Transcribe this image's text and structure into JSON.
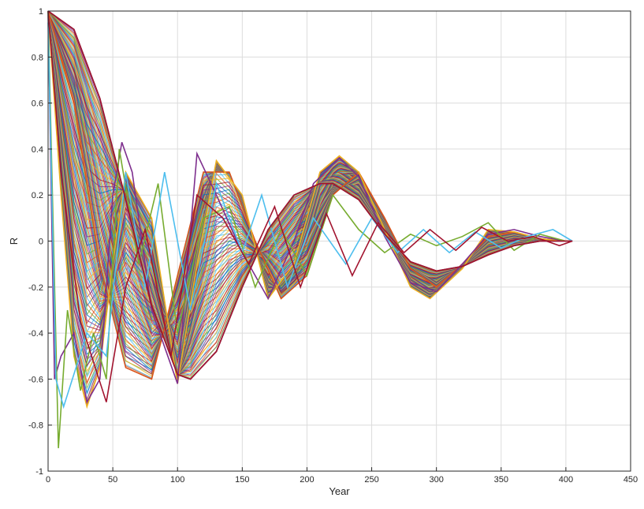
{
  "chart_data": {
    "type": "line",
    "title": "",
    "xlabel": "Year",
    "ylabel": "R",
    "xlim": [
      0,
      450
    ],
    "ylim": [
      -1,
      1
    ],
    "xticks": [
      0,
      50,
      100,
      150,
      200,
      250,
      300,
      350,
      400,
      450
    ],
    "xtick_labels": [
      "0",
      "50",
      "100",
      "150",
      "200",
      "250",
      "300",
      "350",
      "400",
      "450"
    ],
    "yticks": [
      -1,
      -0.8,
      -0.6,
      -0.4,
      -0.2,
      0,
      0.2,
      0.4,
      0.6,
      0.8,
      1
    ],
    "ytick_labels": [
      "-1",
      "-0.8",
      "-0.6",
      "-0.4",
      "-0.2",
      "0",
      "0.2",
      "0.4",
      "0.6",
      "0.8",
      "1"
    ],
    "grid": true,
    "legend": "none",
    "series_colors": [
      "#0072BD",
      "#D95319",
      "#EDB120",
      "#7E2F8E",
      "#77AC30",
      "#4DBEEE",
      "#A2142F"
    ],
    "series": [
      {
        "x": [
          0,
          20,
          40,
          60,
          80,
          100,
          110,
          130,
          150,
          170,
          190,
          210,
          220,
          240,
          260,
          280,
          300,
          320,
          340,
          360,
          380,
          400,
          405
        ],
        "values": [
          1.0,
          0.92,
          0.62,
          0.18,
          -0.28,
          -0.58,
          -0.6,
          -0.48,
          -0.2,
          0.05,
          0.2,
          0.25,
          0.25,
          0.18,
          0.03,
          -0.09,
          -0.13,
          -0.11,
          -0.06,
          -0.02,
          0.0,
          0.0,
          0.0
        ]
      },
      {
        "x": [
          0,
          20,
          40,
          60,
          80,
          100,
          120,
          140,
          160,
          180,
          200,
          220,
          240,
          260,
          280,
          300,
          320,
          340,
          360,
          380,
          400,
          405
        ],
        "values": [
          1.0,
          0.6,
          -0.1,
          -0.55,
          -0.6,
          -0.15,
          0.3,
          0.3,
          0.0,
          -0.25,
          -0.15,
          0.2,
          0.3,
          0.1,
          -0.12,
          -0.2,
          -0.1,
          0.02,
          0.04,
          0.01,
          0.0,
          0.0
        ]
      },
      {
        "x": [
          0,
          10,
          20,
          30,
          40,
          50,
          60,
          80,
          100,
          115,
          130,
          150,
          170,
          190,
          210,
          225,
          240,
          260,
          280,
          295,
          320,
          340,
          360,
          380,
          400,
          405
        ],
        "values": [
          1.0,
          0.2,
          -0.5,
          -0.72,
          -0.55,
          -0.1,
          0.3,
          0.1,
          -0.62,
          -0.1,
          0.35,
          0.2,
          -0.25,
          -0.1,
          0.3,
          0.37,
          0.3,
          0.05,
          -0.2,
          -0.25,
          -0.12,
          0.05,
          0.04,
          0.01,
          0.0,
          0.0
        ]
      },
      {
        "x": [
          0,
          5,
          10,
          20,
          30,
          40,
          50,
          57,
          65,
          80,
          100,
          115,
          130,
          150,
          170,
          190,
          205,
          225,
          240,
          260,
          280,
          300,
          320,
          340,
          360,
          380,
          400,
          405
        ],
        "values": [
          1.0,
          -0.6,
          -0.5,
          -0.4,
          -0.7,
          -0.6,
          0.2,
          0.43,
          0.3,
          -0.3,
          -0.62,
          0.38,
          0.2,
          -0.05,
          -0.25,
          0.0,
          0.25,
          0.36,
          0.28,
          0.02,
          -0.18,
          -0.22,
          -0.1,
          0.03,
          0.05,
          0.02,
          0.0,
          0.0
        ]
      },
      {
        "x": [
          0,
          8,
          15,
          25,
          35,
          45,
          55,
          70,
          85,
          100,
          120,
          140,
          160,
          180,
          200,
          220,
          240,
          260,
          280,
          300,
          320,
          340,
          360,
          380,
          400,
          405
        ],
        "values": [
          1.0,
          -0.9,
          -0.3,
          -0.65,
          -0.4,
          -0.6,
          0.4,
          -0.1,
          0.25,
          -0.4,
          0.1,
          0.15,
          -0.2,
          0.05,
          -0.15,
          0.2,
          0.05,
          -0.05,
          0.03,
          -0.02,
          0.02,
          0.08,
          -0.04,
          0.03,
          0.0,
          0.0
        ]
      },
      {
        "x": [
          0,
          6,
          12,
          30,
          45,
          60,
          75,
          90,
          110,
          130,
          150,
          165,
          185,
          205,
          230,
          250,
          270,
          290,
          310,
          330,
          350,
          370,
          390,
          405
        ],
        "values": [
          0.95,
          -0.6,
          -0.72,
          -0.4,
          -0.5,
          0.3,
          -0.2,
          0.3,
          -0.3,
          0.25,
          -0.05,
          0.2,
          -0.2,
          0.1,
          -0.1,
          0.1,
          -0.05,
          0.05,
          -0.05,
          0.04,
          -0.03,
          0.02,
          0.05,
          0.0
        ]
      },
      {
        "x": [
          0,
          10,
          25,
          45,
          60,
          75,
          95,
          115,
          135,
          155,
          175,
          195,
          215,
          235,
          255,
          275,
          295,
          315,
          335,
          355,
          375,
          395,
          405
        ],
        "values": [
          1.0,
          0.3,
          -0.35,
          -0.7,
          -0.2,
          0.05,
          -0.5,
          0.2,
          0.1,
          -0.1,
          0.15,
          -0.2,
          0.12,
          -0.15,
          0.08,
          -0.05,
          0.05,
          -0.04,
          0.06,
          0.0,
          0.02,
          -0.02,
          0.0
        ]
      }
    ]
  }
}
